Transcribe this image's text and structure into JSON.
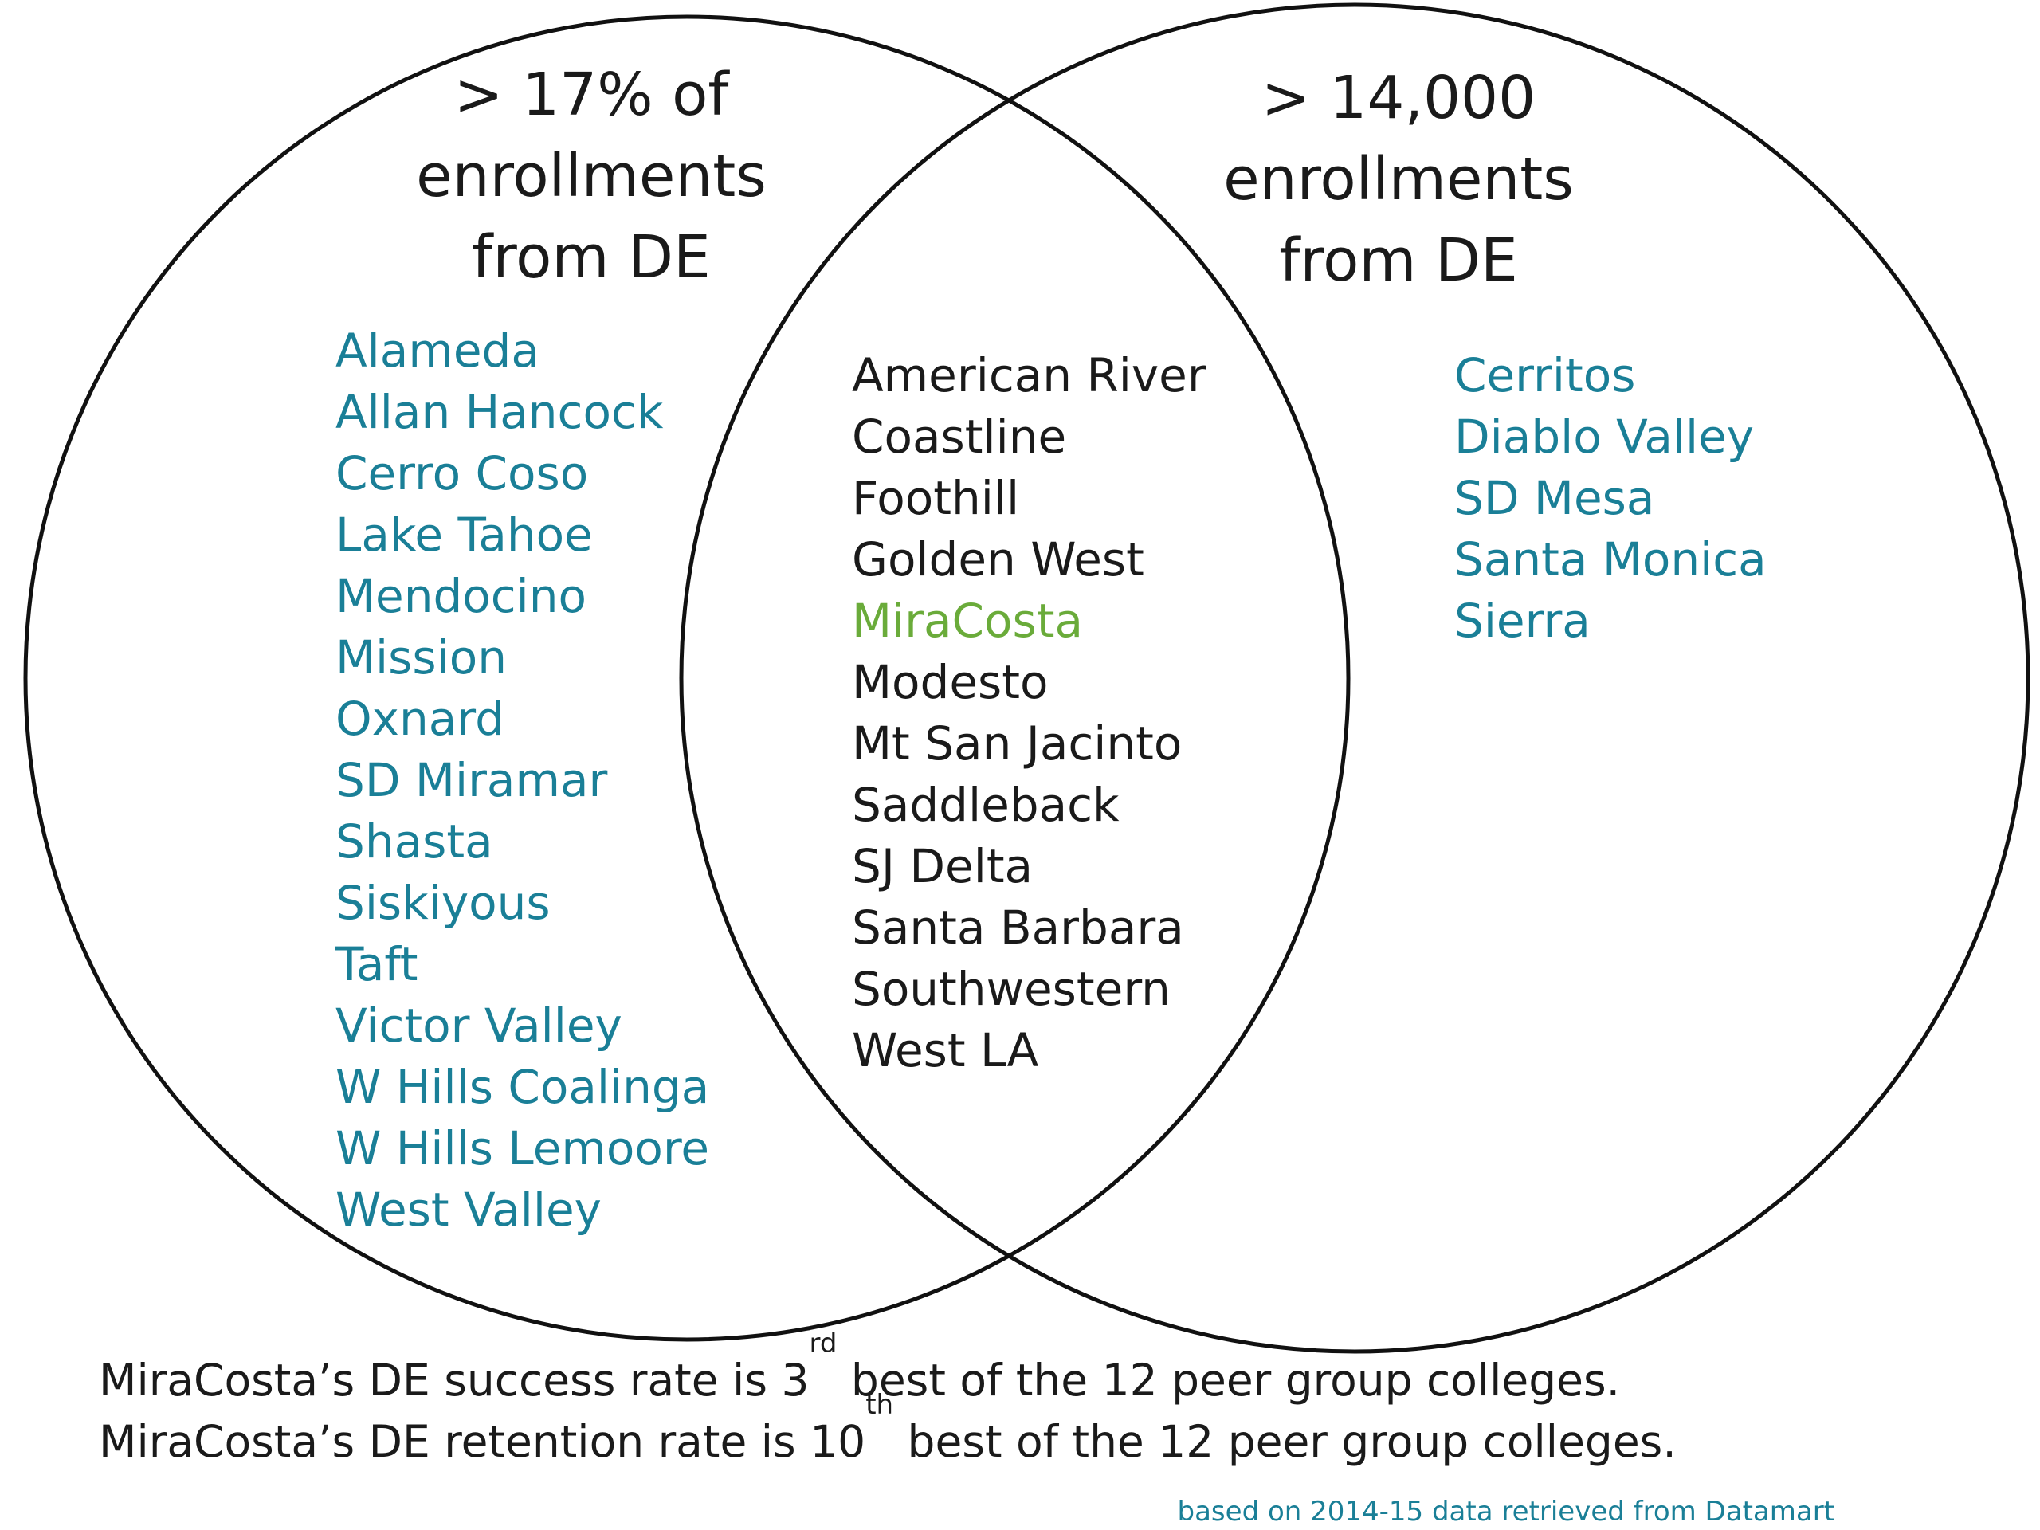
{
  "left_set": {
    "heading": [
      "> 17% of",
      "enrollments",
      "from DE"
    ],
    "items": [
      "Alameda",
      "Allan Hancock",
      "Cerro Coso",
      "Lake Tahoe",
      "Mendocino",
      "Mission",
      "Oxnard",
      "SD Miramar",
      "Shasta",
      "Siskiyous",
      "Taft",
      "Victor Valley",
      "W Hills Coalinga",
      "W Hills Lemoore",
      "West Valley"
    ]
  },
  "right_set": {
    "heading": [
      "> 14,000",
      "enrollments",
      "from DE"
    ],
    "items": [
      "Cerritos",
      "Diablo Valley",
      "SD Mesa",
      "Santa Monica",
      "Sierra"
    ]
  },
  "intersection": {
    "items": [
      "American River",
      "Coastline",
      "Foothill",
      "Golden West",
      "MiraCosta",
      "Modesto",
      "Mt San Jacinto",
      "Saddleback",
      "SJ Delta",
      "Santa Barbara",
      "Southwestern",
      "West LA"
    ],
    "highlighted": "MiraCosta"
  },
  "footnotes": {
    "success": {
      "before": "MiraCosta’s DE success rate is 3",
      "sup": "rd",
      "after": " best of the 12 peer group colleges."
    },
    "retention": {
      "before": "MiraCosta’s DE retention rate is 10",
      "sup": "th",
      "after": " best of the 12 peer group colleges."
    }
  },
  "source_note": "based on 2014-15 data retrieved from Datamart",
  "colors": {
    "set_items": "#1a7f97",
    "intersection_items": "#1a1a1a",
    "highlight": "#6aab3a",
    "outline": "#111111"
  }
}
